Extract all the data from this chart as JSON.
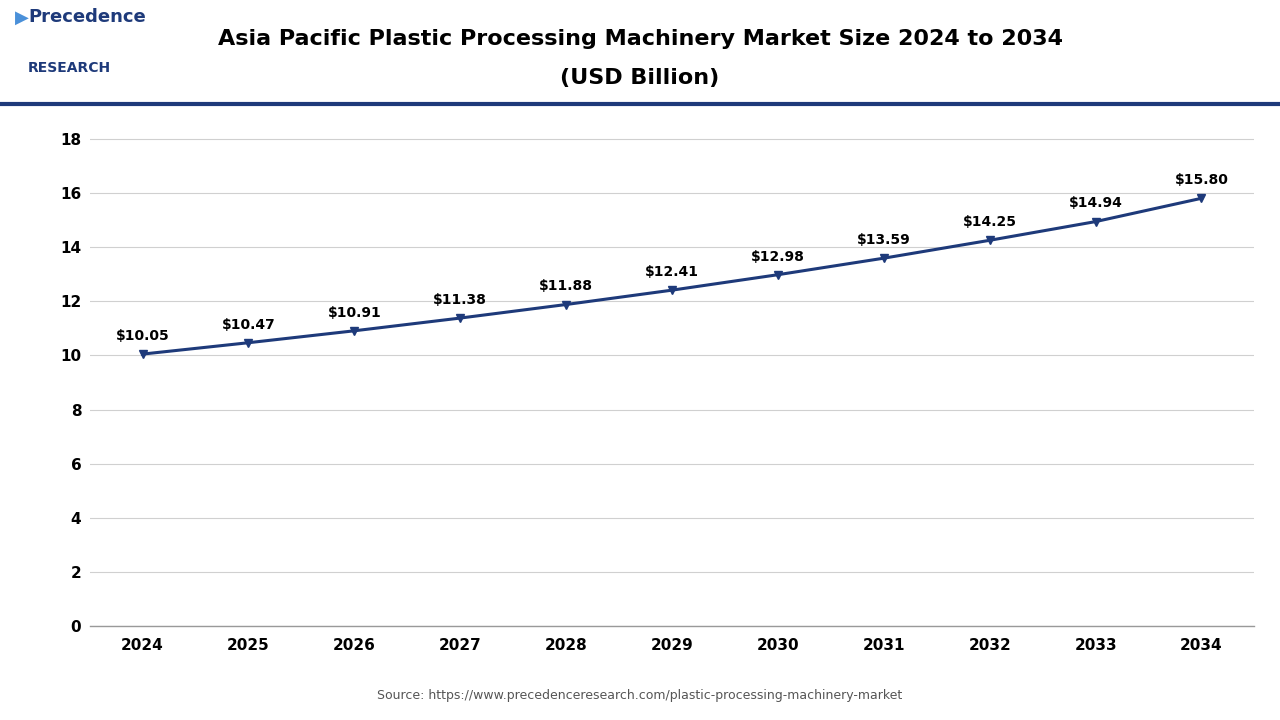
{
  "title_line1": "Asia Pacific Plastic Processing Machinery Market Size 2024 to 2034",
  "title_line2": "(USD Billion)",
  "years": [
    2024,
    2025,
    2026,
    2027,
    2028,
    2029,
    2030,
    2031,
    2032,
    2033,
    2034
  ],
  "values": [
    10.05,
    10.47,
    10.91,
    11.38,
    11.88,
    12.41,
    12.98,
    13.59,
    14.25,
    14.94,
    15.8
  ],
  "labels": [
    "$10.05",
    "$10.47",
    "$10.91",
    "$11.38",
    "$11.88",
    "$12.41",
    "$12.98",
    "$13.59",
    "$14.25",
    "$14.94",
    "$15.80"
  ],
  "line_color": "#1e3a7a",
  "marker_color": "#1e3a7a",
  "bg_color": "#ffffff",
  "plot_bg_color": "#ffffff",
  "grid_color": "#d0d0d0",
  "title_color": "#000000",
  "tick_color": "#000000",
  "ylim": [
    0,
    19
  ],
  "yticks": [
    0,
    2,
    4,
    6,
    8,
    10,
    12,
    14,
    16,
    18
  ],
  "source_text": "Source: https://www.precedenceresearch.com/plastic-processing-machinery-market",
  "logo_precedence": "Precedence",
  "logo_research": "RESEARCH",
  "separator_color": "#1e3a7a",
  "label_fontsize": 10,
  "tick_fontsize": 11,
  "title_fontsize": 16
}
